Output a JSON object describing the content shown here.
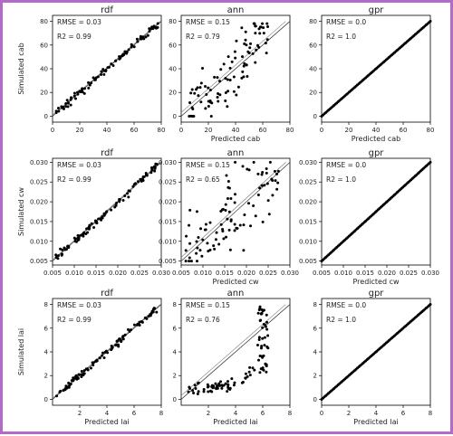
{
  "chart_data": {
    "type": "scatter",
    "layout": {
      "rows": 3,
      "cols": 3
    },
    "panels": [
      {
        "title": "rdf",
        "xlabel": "",
        "ylabel": "Simulated cab",
        "xlim": [
          0,
          80
        ],
        "ylim": [
          -5,
          85
        ],
        "xticks": [
          0,
          20,
          40,
          60,
          80
        ],
        "yticks": [
          0,
          20,
          40,
          60,
          80
        ],
        "tick_labels": [
          "0",
          "20",
          "40",
          "60",
          "80"
        ],
        "rmse": "RMSE = 0.03",
        "r2": "R2 = 0.99",
        "model": "rdf",
        "var": "cab"
      },
      {
        "title": "ann",
        "xlabel": "Predicted cab",
        "ylabel": "",
        "xlim": [
          0,
          80
        ],
        "ylim": [
          -5,
          85
        ],
        "xticks": [
          0,
          20,
          40,
          60,
          80
        ],
        "yticks": [
          0,
          20,
          40,
          60,
          80
        ],
        "tick_labels": [
          "0",
          "20",
          "40",
          "60",
          "80"
        ],
        "rmse": "RMSE = 0.15",
        "r2": "R2 = 0.79",
        "model": "ann",
        "var": "cab"
      },
      {
        "title": "gpr",
        "xlabel": "Predicted cab",
        "ylabel": "",
        "xlim": [
          0,
          80
        ],
        "ylim": [
          -5,
          85
        ],
        "xticks": [
          0,
          20,
          40,
          60,
          80
        ],
        "yticks": [
          0,
          20,
          40,
          60,
          80
        ],
        "tick_labels": [
          "0",
          "20",
          "40",
          "60",
          "80"
        ],
        "rmse": "RMSE = 0.0",
        "r2": "R2 = 1.0",
        "model": "gpr",
        "var": "cab"
      },
      {
        "title": "rdf",
        "xlabel": "",
        "ylabel": "Simulated cw",
        "xlim": [
          0.005,
          0.03
        ],
        "ylim": [
          0.004,
          0.031
        ],
        "xticks": [
          0.005,
          0.01,
          0.015,
          0.02,
          0.025,
          0.03
        ],
        "yticks": [
          0.005,
          0.01,
          0.015,
          0.02,
          0.025,
          0.03
        ],
        "xtick_labels": [
          "0.005",
          "0.010",
          "0.015",
          "0.020",
          "0.025",
          "0.030"
        ],
        "ytick_labels": [
          "0.005",
          "0.010",
          "0.015",
          "0.020",
          "0.025",
          "0.030"
        ],
        "rmse": "RMSE = 0.03",
        "r2": "R2 = 0.99",
        "model": "rdf",
        "var": "cw"
      },
      {
        "title": "ann",
        "xlabel": "Predicted cw",
        "ylabel": "",
        "xlim": [
          0.005,
          0.03
        ],
        "ylim": [
          0.004,
          0.031
        ],
        "xticks": [
          0.005,
          0.01,
          0.015,
          0.02,
          0.025,
          0.03
        ],
        "yticks": [
          0.005,
          0.01,
          0.015,
          0.02,
          0.025,
          0.03
        ],
        "xtick_labels": [
          "0.005",
          "0.010",
          "0.015",
          "0.020",
          "0.025",
          "0.030"
        ],
        "ytick_labels": [
          "0.005",
          "0.010",
          "0.015",
          "0.020",
          "0.025",
          "0.030"
        ],
        "rmse": "RMSE = 0.15",
        "r2": "R2 = 0.65",
        "model": "ann",
        "var": "cw"
      },
      {
        "title": "gpr",
        "xlabel": "Predicted cw",
        "ylabel": "",
        "xlim": [
          0.005,
          0.03
        ],
        "ylim": [
          0.004,
          0.031
        ],
        "xticks": [
          0.005,
          0.01,
          0.015,
          0.02,
          0.025,
          0.03
        ],
        "yticks": [
          0.005,
          0.01,
          0.015,
          0.02,
          0.025,
          0.03
        ],
        "xtick_labels": [
          "0.005",
          "0.010",
          "0.015",
          "0.020",
          "0.025",
          "0.030"
        ],
        "ytick_labels": [
          "0.005",
          "0.010",
          "0.015",
          "0.020",
          "0.025",
          "0.030"
        ],
        "rmse": "RMSE = 0.0",
        "r2": "R2 = 1.0",
        "model": "gpr",
        "var": "cw"
      },
      {
        "title": "rdf",
        "xlabel": "Predicted lai",
        "ylabel": "Simulated lai",
        "xlim": [
          0,
          8
        ],
        "ylim": [
          -0.5,
          8.5
        ],
        "xticks": [
          2,
          4,
          6,
          8
        ],
        "yticks": [
          0,
          2,
          4,
          6,
          8
        ],
        "xtick_labels": [
          "2",
          "4",
          "6",
          "8"
        ],
        "ytick_labels": [
          "0",
          "2",
          "4",
          "6",
          "8"
        ],
        "rmse": "RMSE = 0.03",
        "r2": "R2 = 0.99",
        "model": "rdf",
        "var": "lai"
      },
      {
        "title": "ann",
        "xlabel": "Predicted lai",
        "ylabel": "",
        "xlim": [
          0,
          8
        ],
        "ylim": [
          -0.5,
          8.5
        ],
        "xticks": [
          2,
          4,
          6,
          8
        ],
        "yticks": [
          0,
          2,
          4,
          6,
          8
        ],
        "xtick_labels": [
          "2",
          "4",
          "6",
          "8"
        ],
        "ytick_labels": [
          "0",
          "2",
          "4",
          "6",
          "8"
        ],
        "rmse": "RMSE = 0.15",
        "r2": "R2 = 0.76",
        "model": "ann",
        "var": "lai"
      },
      {
        "title": "gpr",
        "xlabel": "Predicted lai",
        "ylabel": "",
        "xlim": [
          0,
          8
        ],
        "ylim": [
          -0.5,
          8.5
        ],
        "xticks": [
          0,
          2,
          4,
          6,
          8
        ],
        "yticks": [
          0,
          2,
          4,
          6,
          8
        ],
        "xtick_labels": [
          "0",
          "2",
          "4",
          "6",
          "8"
        ],
        "ytick_labels": [
          "0",
          "2",
          "4",
          "6",
          "8"
        ],
        "rmse": "RMSE = 0.0",
        "r2": "R2 = 1.0",
        "model": "gpr",
        "var": "lai"
      }
    ],
    "series_style": {
      "point_color": "#000000",
      "line_color": "#555555"
    },
    "grid": false
  }
}
